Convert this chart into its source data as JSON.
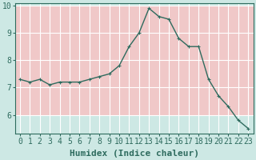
{
  "x": [
    0,
    1,
    2,
    3,
    4,
    5,
    6,
    7,
    8,
    9,
    10,
    11,
    12,
    13,
    14,
    15,
    16,
    17,
    18,
    19,
    20,
    21,
    22,
    23
  ],
  "y": [
    7.3,
    7.2,
    7.3,
    7.1,
    7.2,
    7.2,
    7.2,
    7.3,
    7.4,
    7.5,
    7.8,
    8.5,
    9.0,
    9.9,
    9.6,
    9.5,
    8.8,
    8.5,
    8.5,
    7.3,
    6.7,
    6.3,
    5.8,
    5.5
  ],
  "line_color": "#2e6b5e",
  "marker": "+",
  "marker_size": 3,
  "xlabel": "Humidex (Indice chaleur)",
  "xlim": [
    -0.5,
    23.5
  ],
  "ylim": [
    5.3,
    10.1
  ],
  "yticks": [
    6,
    7,
    8,
    9,
    10
  ],
  "xticks": [
    0,
    1,
    2,
    3,
    4,
    5,
    6,
    7,
    8,
    9,
    10,
    11,
    12,
    13,
    14,
    15,
    16,
    17,
    18,
    19,
    20,
    21,
    22,
    23
  ],
  "plot_bg_color": "#cde8e4",
  "fig_bg_color": "#cde8e4",
  "grid_color": "#ffffff",
  "grid_color_h": "#f0c8c8",
  "label_color": "#2e6b5e",
  "tick_color": "#2e6b5e",
  "spine_color": "#2e6b5e",
  "font_size": 7,
  "xlabel_fontsize": 8,
  "linewidth": 1.0,
  "marker_edge_width": 0.8
}
